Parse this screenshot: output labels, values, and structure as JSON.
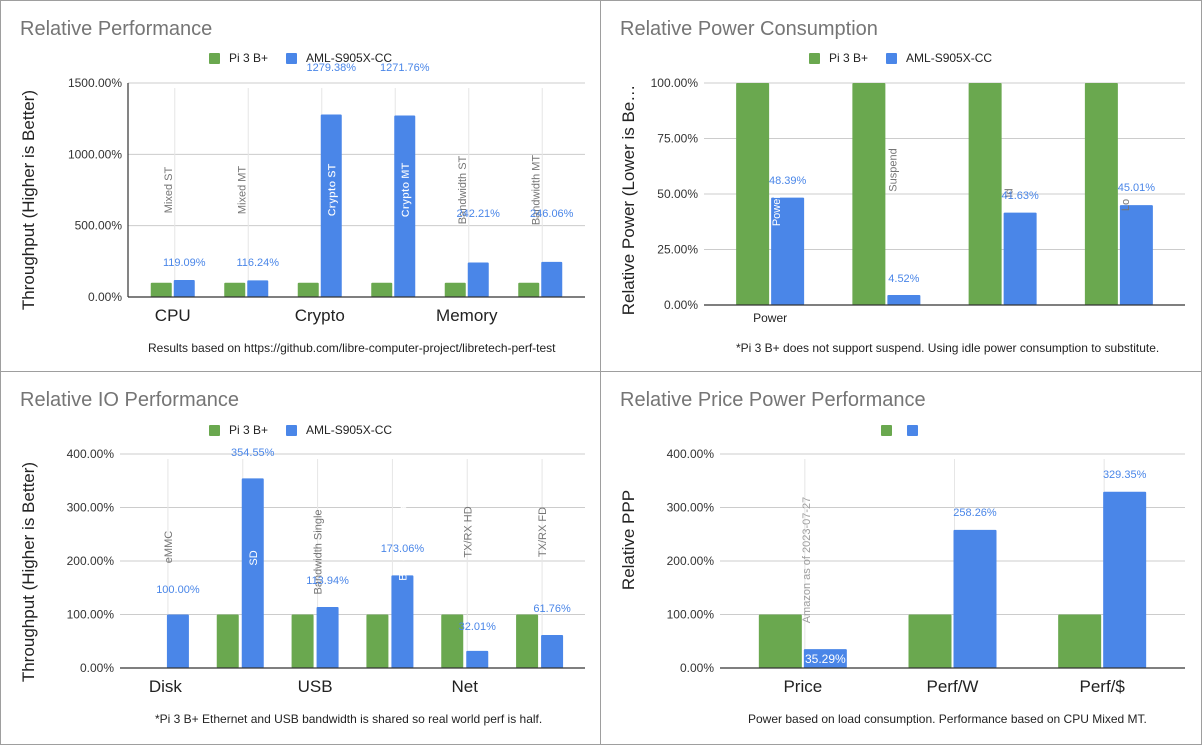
{
  "colors": {
    "series_1": "#6aa84f",
    "series_2": "#4a86e8",
    "data_label": "#4a86e8",
    "gridline": "#cccccc",
    "axis": "#333333",
    "title": "#757575",
    "annotation": "#9e9e9e"
  },
  "chart_data": [
    {
      "type": "bar",
      "title": "Relative Performance",
      "ylabel": "Throughput (Higher is Better)",
      "xlabel": "",
      "ylim": [
        0,
        1500
      ],
      "yticks": [
        "0.00%",
        "500.00%",
        "1000.00%",
        "1500.00%"
      ],
      "ytick_values": [
        0,
        500,
        1000,
        1500
      ],
      "grid": true,
      "legend_placement": "top",
      "legend": [
        "Pi 3 B+",
        "AML-S905X-CC"
      ],
      "categories": [
        "Mixed ST",
        "Mixed MT",
        "Crypto ST",
        "Crypto MT",
        "Bandwidth ST",
        "Bandwidth MT"
      ],
      "group_labels": [
        {
          "label": "CPU",
          "at": 0
        },
        {
          "label": "Crypto",
          "at": 2
        },
        {
          "label": "Memory",
          "at": 4
        }
      ],
      "series": [
        {
          "name": "Pi 3 B+",
          "values": [
            100,
            100,
            100,
            100,
            100,
            100
          ]
        },
        {
          "name": "AML-S905X-CC",
          "values": [
            119.09,
            116.24,
            1279.38,
            1271.76,
            242.21,
            246.06
          ],
          "data_labels": [
            "119.09%",
            "116.24%",
            "1279.38%",
            "1271.76%",
            "242.21%",
            "246.06%"
          ]
        }
      ],
      "footnote": "Results based on https://github.com/libre-computer-project/libretech-perf-test"
    },
    {
      "type": "bar",
      "title": "Relative Power Consumption",
      "ylabel": "Relative Power (Lower is Be…",
      "xlabel": "",
      "ylim": [
        0,
        100
      ],
      "yticks": [
        "0.00%",
        "25.00%",
        "50.00%",
        "75.00%",
        "100.00%"
      ],
      "ytick_values": [
        0,
        25,
        50,
        75,
        100
      ],
      "grid": true,
      "legend_placement": "top",
      "legend": [
        "Pi 3 B+",
        "AML-S905X-CC"
      ],
      "categories": [
        "Power Down",
        "Suspend",
        "Idle",
        "Load"
      ],
      "group_labels": [
        {
          "label": "Power",
          "at": 0
        }
      ],
      "series": [
        {
          "name": "Pi 3 B+",
          "values": [
            100,
            100,
            100,
            100
          ]
        },
        {
          "name": "AML-S905X-CC",
          "values": [
            48.39,
            4.52,
            41.63,
            45.01
          ],
          "data_labels": [
            "48.39%",
            "4.52%",
            "41.63%",
            "45.01%"
          ]
        }
      ],
      "footnote": "*Pi 3 B+ does not support suspend. Using idle power consumption to substitute."
    },
    {
      "type": "bar",
      "title": "Relative IO Performance",
      "ylabel": "Throughput (Higher is Better)",
      "xlabel": "",
      "ylim": [
        0,
        400
      ],
      "yticks": [
        "0.00%",
        "100.00%",
        "200.00%",
        "300.00%",
        "400.00%"
      ],
      "ytick_values": [
        0,
        100,
        200,
        300,
        400
      ],
      "grid": true,
      "legend_placement": "top",
      "legend": [
        "Pi 3 B+",
        "AML-S905X-CC"
      ],
      "categories": [
        "eMMC",
        "SD",
        "Bandwidth Single",
        "Bandwidth Total",
        "TX/RX HD",
        "TX/RX FD"
      ],
      "group_labels": [
        {
          "label": "Disk",
          "at": 0
        },
        {
          "label": "USB",
          "at": 2
        },
        {
          "label": "Net",
          "at": 4
        }
      ],
      "series": [
        {
          "name": "Pi 3 B+",
          "values": [
            null,
            100,
            100,
            100,
            100,
            100
          ]
        },
        {
          "name": "AML-S905X-CC",
          "values": [
            100.0,
            354.55,
            113.94,
            173.06,
            32.01,
            61.76
          ],
          "data_labels": [
            "100.00%",
            "354.55%",
            "113.94%",
            "173.06%",
            "32.01%",
            "61.76%"
          ]
        }
      ],
      "footnote": "*Pi 3 B+ Ethernet and USB bandwidth is shared so real world perf is half."
    },
    {
      "type": "bar",
      "title": "Relative Price Power Performance",
      "ylabel": "Relative PPP",
      "xlabel": "",
      "ylim": [
        0,
        400
      ],
      "yticks": [
        "0.00%",
        "100.00%",
        "200.00%",
        "300.00%",
        "400.00%"
      ],
      "ytick_values": [
        0,
        100,
        200,
        300,
        400
      ],
      "grid": true,
      "legend_placement": "top",
      "legend": [
        "",
        ""
      ],
      "categories": [
        "Price",
        "Perf/W",
        "Perf/$"
      ],
      "group_labels": [
        {
          "label": "Price",
          "at": 0
        },
        {
          "label": "Perf/W",
          "at": 1
        },
        {
          "label": "Perf/$",
          "at": 2
        }
      ],
      "annotation": "Amazon as of 2023-07-27",
      "series": [
        {
          "name": "",
          "values": [
            100,
            100,
            100
          ]
        },
        {
          "name": "",
          "values": [
            35.29,
            258.26,
            329.35
          ],
          "data_labels": [
            "35.29%",
            "258.26%",
            "329.35%"
          ]
        }
      ],
      "footnote": "Power based on load consumption. Performance based on CPU Mixed MT."
    }
  ]
}
